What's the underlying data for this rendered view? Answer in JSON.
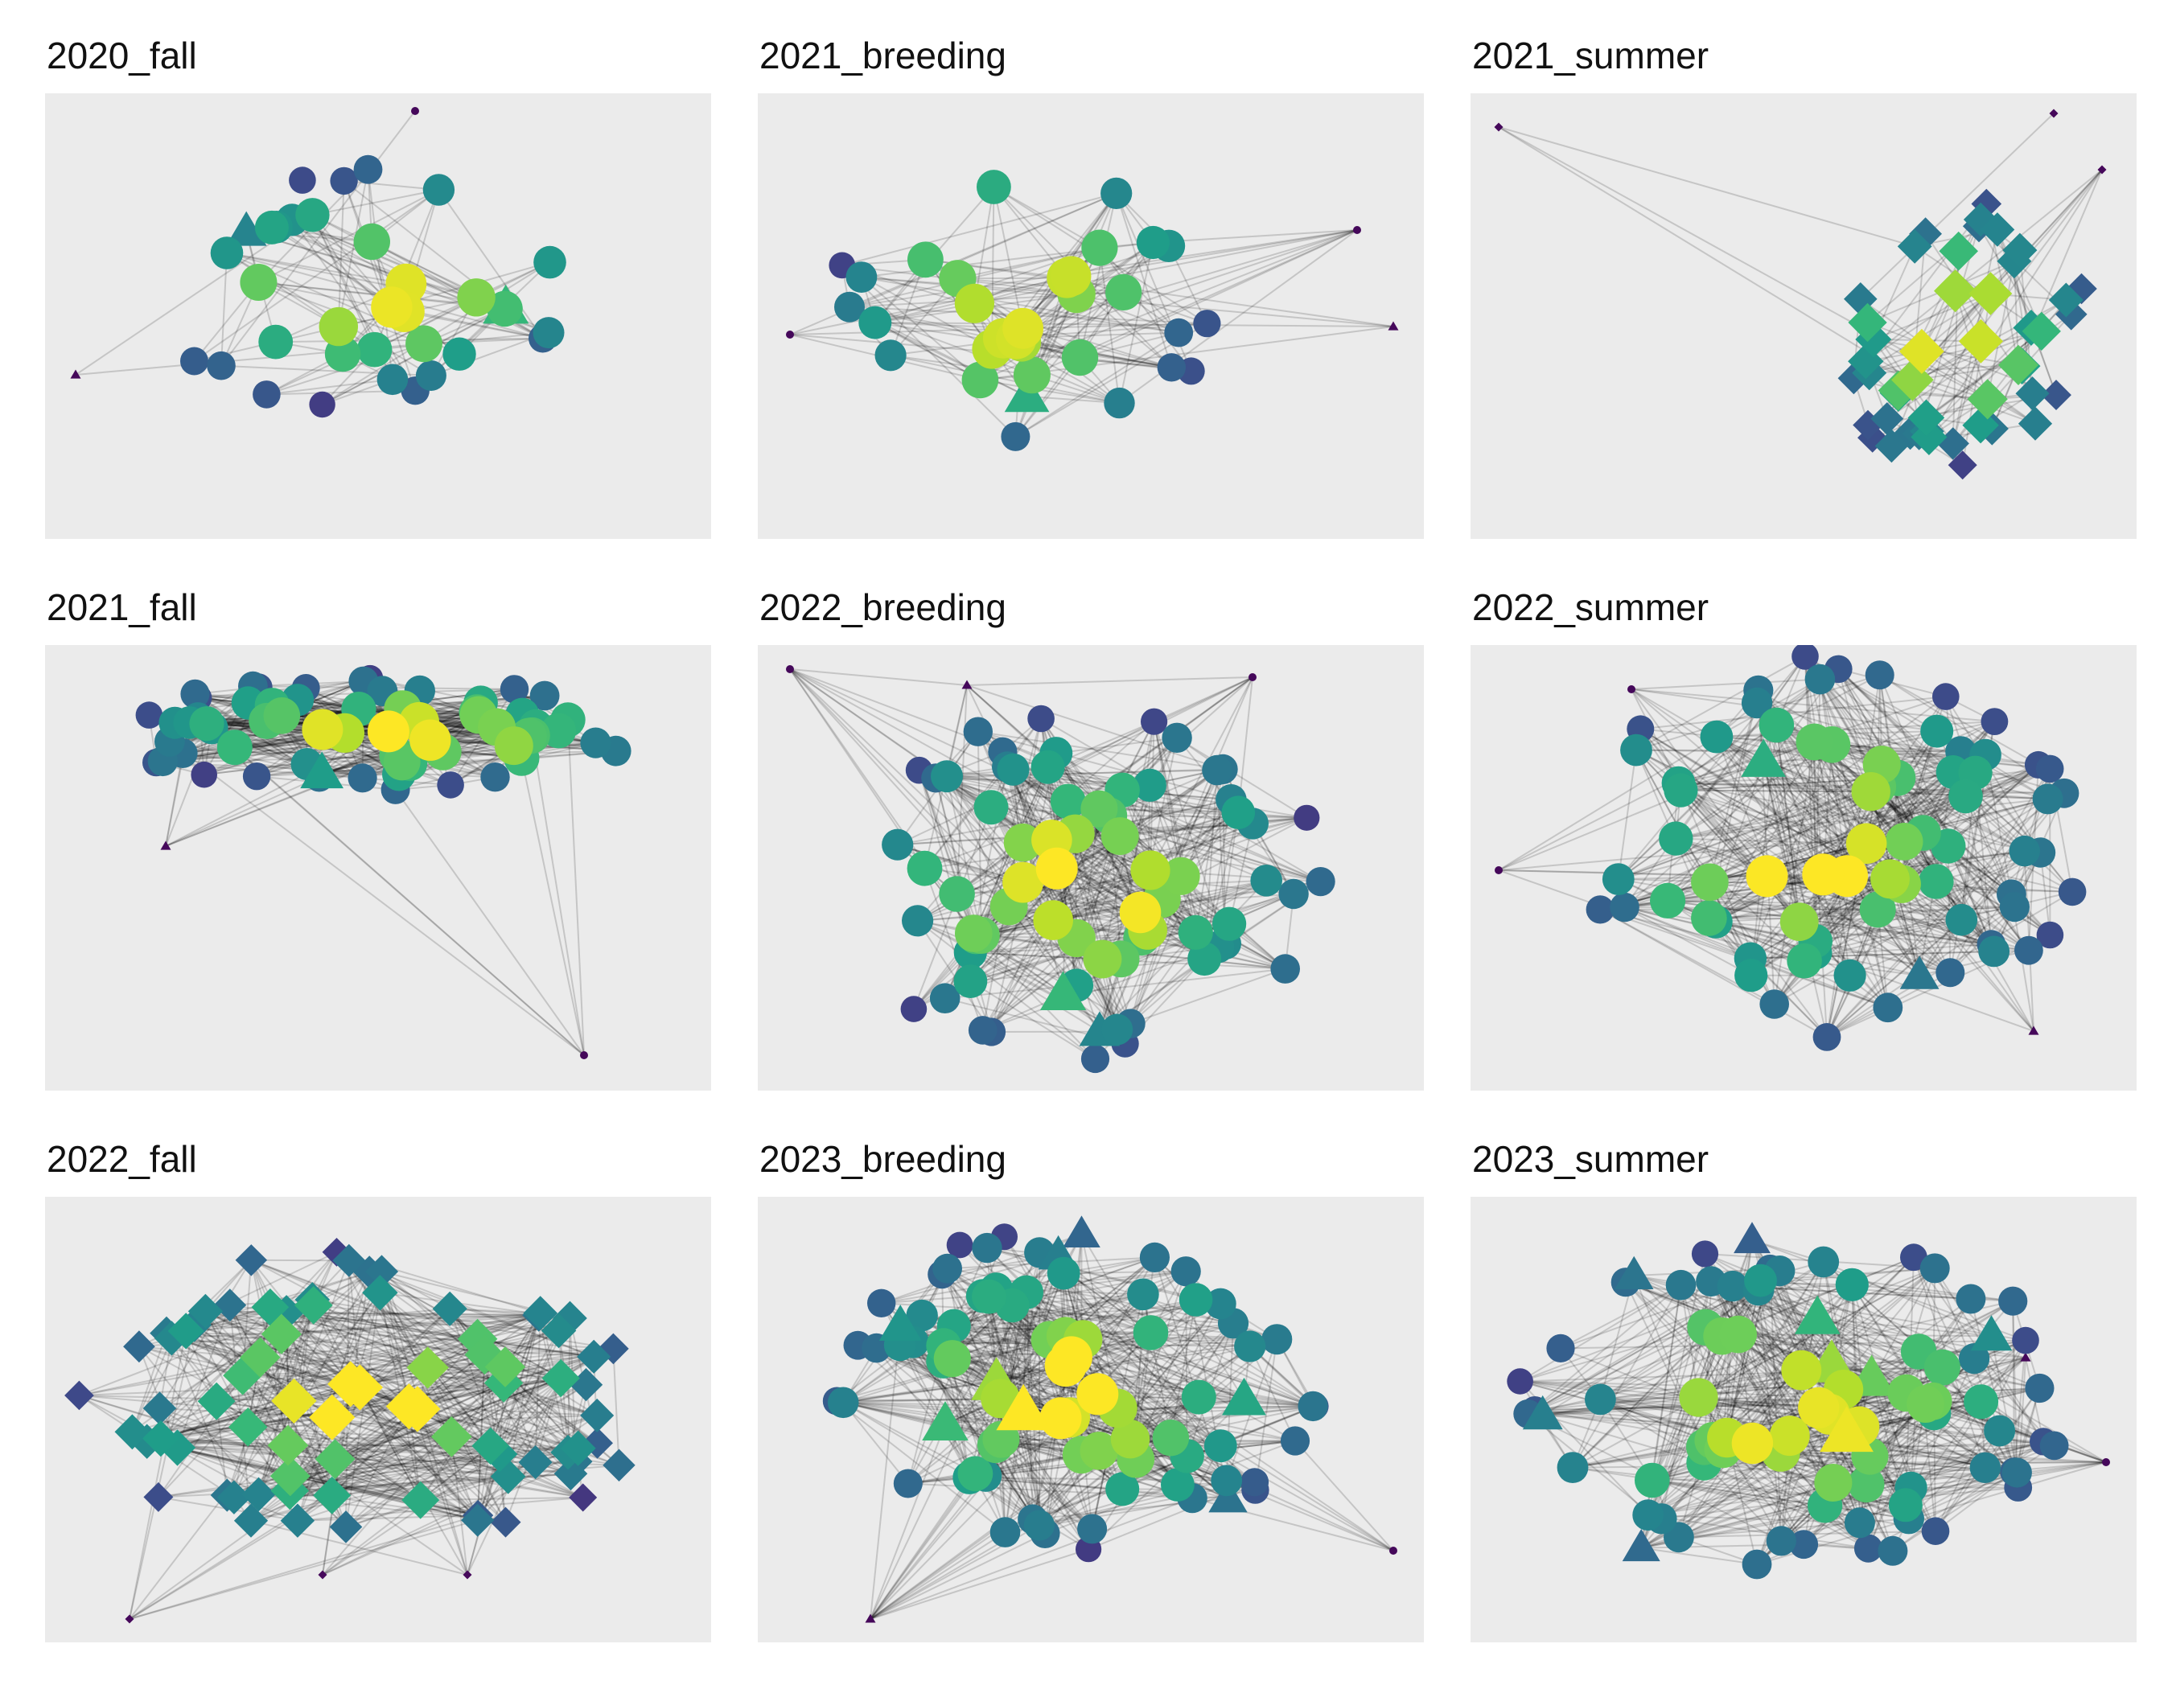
{
  "figure": {
    "panels": [
      {
        "title": "2020_fall"
      },
      {
        "title": "2021_breeding"
      },
      {
        "title": "2021_summer"
      },
      {
        "title": "2021_fall"
      },
      {
        "title": "2022_breeding"
      },
      {
        "title": "2022_summer"
      },
      {
        "title": "2022_fall"
      },
      {
        "title": "2023_breeding"
      },
      {
        "title": "2023_summer"
      }
    ],
    "colors": {
      "panel_background": "#ebebeb",
      "edge": "#000000",
      "colormap": "viridis",
      "viridis_stops": [
        "#440154",
        "#482878",
        "#3e4989",
        "#31688e",
        "#26828e",
        "#1f9e89",
        "#35b779",
        "#6ece58",
        "#b5de2b",
        "#fde725"
      ]
    },
    "node_shapes": [
      "circle",
      "triangle",
      "diamond"
    ]
  }
}
